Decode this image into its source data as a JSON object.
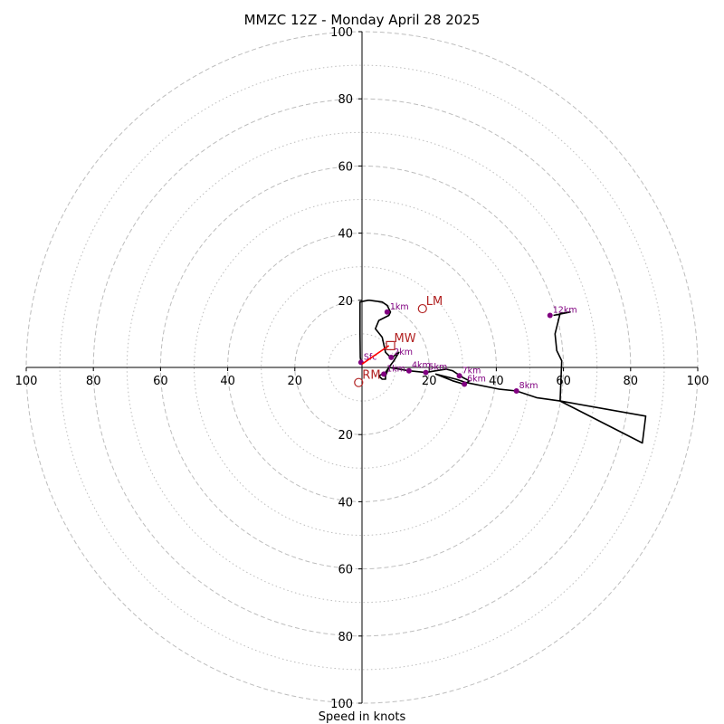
{
  "chart_data": {
    "type": "hodograph",
    "title": "MMZC 12Z - Monday April 28 2025",
    "xlabel": "Speed in knots",
    "units": "knots",
    "range": [
      -100,
      100
    ],
    "ring_major": [
      20,
      40,
      60,
      80,
      100
    ],
    "ring_minor": [
      10,
      30,
      50,
      70,
      90
    ],
    "ticks_pos_x": [
      "20",
      "40",
      "60",
      "80",
      "100"
    ],
    "ticks_neg_x": [
      "20",
      "40",
      "60",
      "80",
      "100"
    ],
    "ticks_pos_y": [
      "20",
      "40",
      "60",
      "80",
      "100"
    ],
    "ticks_neg_y": [
      "20",
      "40",
      "60",
      "80",
      "100"
    ],
    "trace": [
      [
        -0.3,
        1.5
      ],
      [
        -0.5,
        3
      ],
      [
        -0.6,
        10
      ],
      [
        -0.6,
        19.5
      ],
      [
        1.8,
        20
      ],
      [
        2.3,
        20
      ],
      [
        6,
        19.5
      ],
      [
        7.5,
        18.5
      ],
      [
        8.5,
        16.5
      ],
      [
        8,
        15.5
      ],
      [
        5,
        14
      ],
      [
        4,
        11.5
      ],
      [
        6,
        9
      ],
      [
        7,
        4.5
      ],
      [
        8,
        3.5
      ],
      [
        9,
        3
      ],
      [
        11,
        4.5
      ],
      [
        9.5,
        2
      ],
      [
        8,
        0
      ],
      [
        7,
        -2.5
      ],
      [
        7,
        -3.5
      ],
      [
        6,
        -3.5
      ],
      [
        5,
        -2.5
      ],
      [
        7,
        -1.5
      ],
      [
        8,
        0
      ],
      [
        14,
        -1
      ],
      [
        19,
        -1.5
      ],
      [
        22,
        -1
      ],
      [
        25,
        -0.5
      ],
      [
        27,
        -1
      ],
      [
        30,
        -3
      ],
      [
        32,
        -4
      ],
      [
        30.5,
        -5
      ],
      [
        27,
        -4
      ],
      [
        22,
        -2
      ],
      [
        28,
        -3.5
      ],
      [
        31,
        -4.5
      ],
      [
        41,
        -6.5
      ],
      [
        46,
        -7
      ],
      [
        52,
        -9
      ],
      [
        59,
        -10
      ],
      [
        84.5,
        -14.5
      ],
      [
        83.5,
        -22.5
      ],
      [
        59,
        -10
      ],
      [
        59.5,
        2
      ],
      [
        58,
        5
      ],
      [
        57.5,
        10
      ],
      [
        59,
        16
      ],
      [
        62,
        16.5
      ],
      [
        57,
        15.5
      ]
    ],
    "levels": [
      {
        "label": "Sfc",
        "u": -0.3,
        "v": 1.5
      },
      {
        "label": "1km",
        "u": 6.5,
        "v": -2
      },
      {
        "label": "2km",
        "u": 8.7,
        "v": 3
      },
      {
        "label": "4km",
        "u": 14,
        "v": -1
      },
      {
        "label": "5km",
        "u": 19,
        "v": -1.5
      },
      {
        "label": "7km",
        "u": 29,
        "v": -2.5
      },
      {
        "label": "6km",
        "u": 30.5,
        "v": -5
      },
      {
        "label": "8km",
        "u": 46,
        "v": -7
      },
      {
        "label": "1km",
        "u": 7.5,
        "v": 16.5
      },
      {
        "label": "12km",
        "u": 56,
        "v": 15.5
      }
    ],
    "motions": [
      {
        "label": "LM",
        "u": 18,
        "v": 17.5
      },
      {
        "label": "MW",
        "u": 8.5,
        "v": 6.5
      },
      {
        "label": "RM",
        "u": -1,
        "v": -4.5
      }
    ],
    "shear_vector": {
      "from": [
        0,
        1
      ],
      "to": [
        8,
        6.5
      ]
    },
    "colors": {
      "trace": "#000000",
      "level_points": "#800080",
      "storm_motion": "#b22222",
      "shear_vector": "#ff0000",
      "grid": "#bdbdbd"
    }
  }
}
